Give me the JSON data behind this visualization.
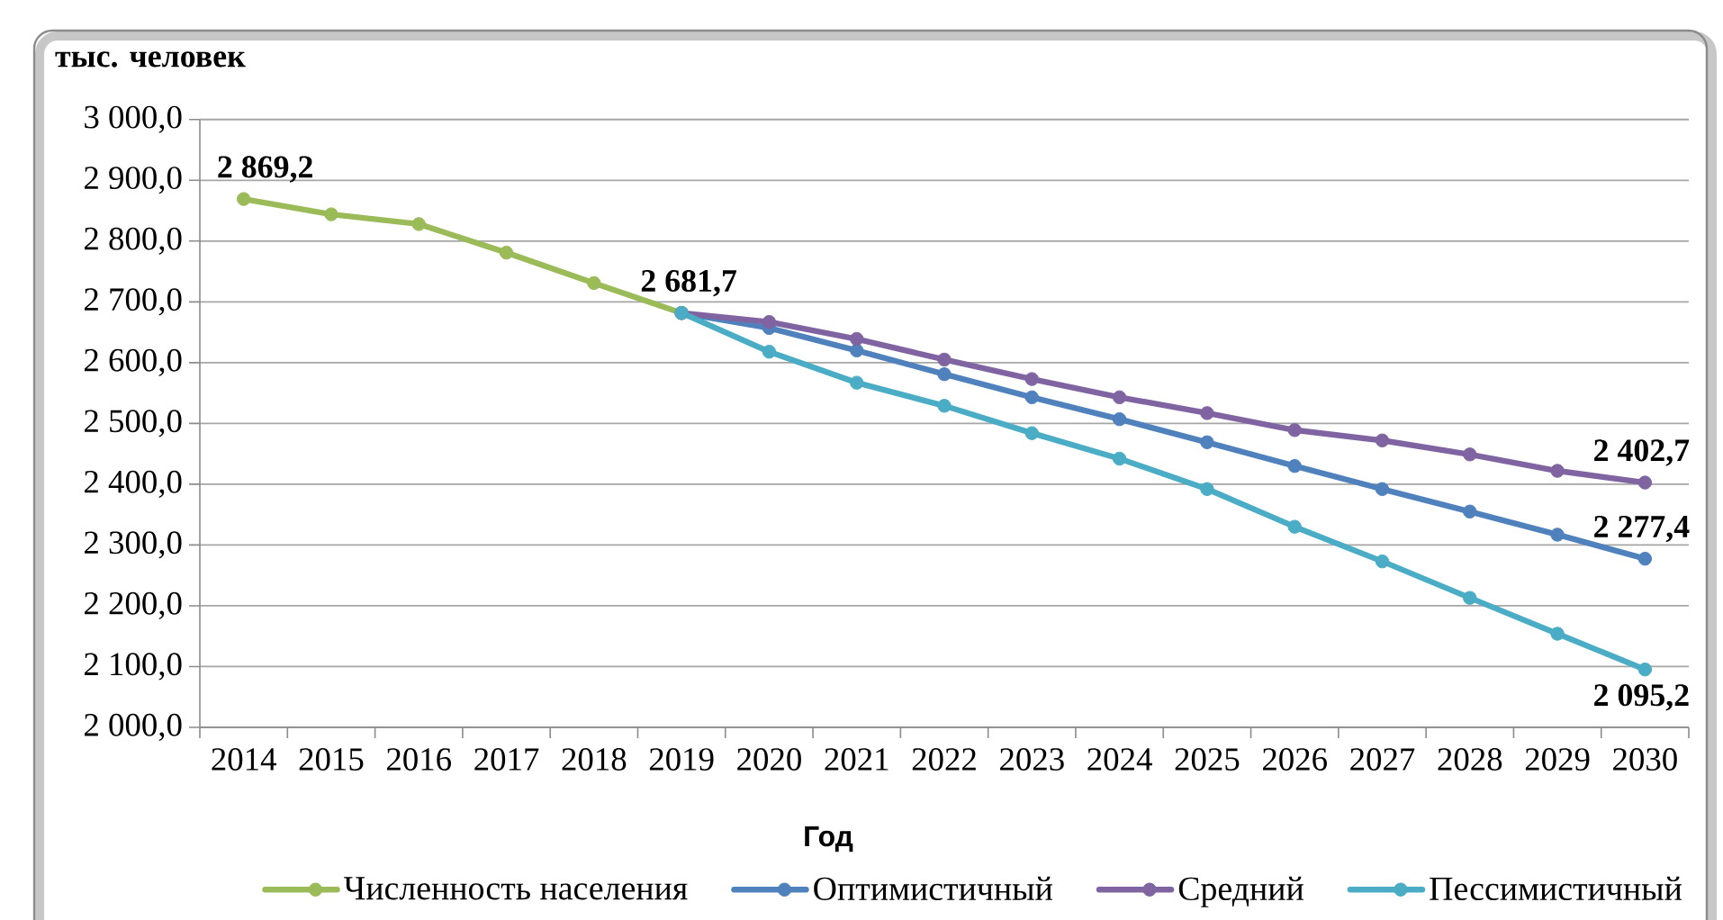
{
  "chart_data": {
    "type": "line",
    "ylabel": "тыс. человек",
    "xlabel": "Год",
    "categories": [
      "2014",
      "2015",
      "2016",
      "2017",
      "2018",
      "2019",
      "2020",
      "2021",
      "2022",
      "2023",
      "2024",
      "2025",
      "2026",
      "2027",
      "2028",
      "2029",
      "2030"
    ],
    "ylim": [
      2000,
      3000
    ],
    "yticks": [
      {
        "value": 2000,
        "label": "2 000,0"
      },
      {
        "value": 2100,
        "label": "2 100,0"
      },
      {
        "value": 2200,
        "label": "2 200,0"
      },
      {
        "value": 2300,
        "label": "2 300,0"
      },
      {
        "value": 2400,
        "label": "2 400,0"
      },
      {
        "value": 2500,
        "label": "2 500,0"
      },
      {
        "value": 2600,
        "label": "2 600,0"
      },
      {
        "value": 2700,
        "label": "2 700,0"
      },
      {
        "value": 2800,
        "label": "2 800,0"
      },
      {
        "value": 2900,
        "label": "2 900,0"
      },
      {
        "value": 3000,
        "label": "3 000,0"
      }
    ],
    "grid": "y",
    "legend": "bottom",
    "marker": "circle",
    "line_style": "solid",
    "series": [
      {
        "name": "Численность населения",
        "color": "#9bbb59",
        "values": [
          2869.2,
          2844,
          2828,
          2781,
          2731,
          2681.7,
          null,
          null,
          null,
          null,
          null,
          null,
          null,
          null,
          null,
          null,
          null
        ],
        "value_labels": [
          "2 869,2",
          null,
          null,
          null,
          null,
          "2 681,7",
          null,
          null,
          null,
          null,
          null,
          null,
          null,
          null,
          null,
          null,
          null
        ]
      },
      {
        "name": "Оптимистичный",
        "color": "#4f81bd",
        "values": [
          null,
          null,
          null,
          null,
          null,
          2681.7,
          2657,
          2620,
          2581,
          2543,
          2507,
          2469,
          2430,
          2392,
          2355,
          2317,
          2277.4
        ],
        "value_labels": [
          null,
          null,
          null,
          null,
          null,
          null,
          null,
          null,
          null,
          null,
          null,
          null,
          null,
          null,
          null,
          null,
          "2 277,4"
        ]
      },
      {
        "name": "Средний",
        "color": "#8064a2",
        "values": [
          null,
          null,
          null,
          null,
          null,
          2681.7,
          2667,
          2639,
          2605,
          2573,
          2543,
          2517,
          2489,
          2472,
          2449,
          2422,
          2402.7
        ],
        "value_labels": [
          null,
          null,
          null,
          null,
          null,
          null,
          null,
          null,
          null,
          null,
          null,
          null,
          null,
          null,
          null,
          null,
          "2 402,7"
        ]
      },
      {
        "name": "Пессимистичный",
        "color": "#4bacc6",
        "values": [
          null,
          null,
          null,
          null,
          null,
          2681.7,
          2618,
          2567,
          2529,
          2484,
          2442,
          2392,
          2330,
          2273,
          2213,
          2154,
          2095.2
        ],
        "value_labels": [
          null,
          null,
          null,
          null,
          null,
          null,
          null,
          null,
          null,
          null,
          null,
          null,
          null,
          null,
          null,
          null,
          "2 095,2"
        ]
      }
    ]
  }
}
